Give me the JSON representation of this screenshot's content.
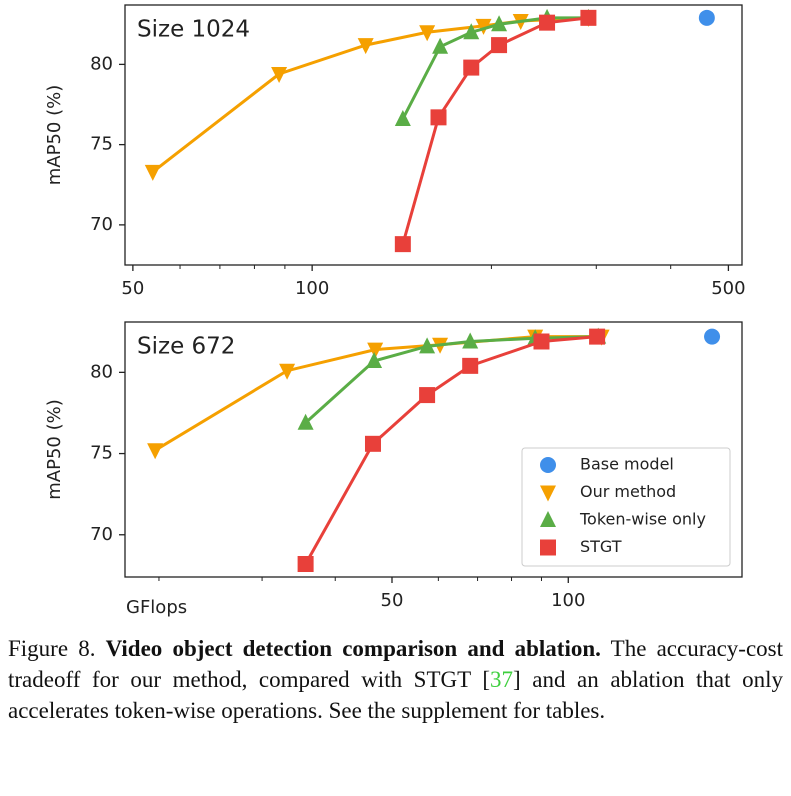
{
  "chart_data": [
    {
      "type": "line",
      "annotation": "Size 1024",
      "ylabel": "mAP50 (%)",
      "xscale": "log",
      "xlim": [
        48.5,
        527
      ],
      "xticks": [
        50,
        100,
        500
      ],
      "xminor": [
        60,
        70,
        80,
        90,
        200,
        300,
        400
      ],
      "ylim": [
        67.5,
        83.7
      ],
      "yticks": [
        70,
        75,
        80
      ],
      "series": [
        {
          "name": "Base model",
          "color": "#3f8fea",
          "marker": "circle",
          "x": [
            460
          ],
          "values": [
            82.9
          ]
        },
        {
          "name": "Our method",
          "color": "#f5a000",
          "marker": "triangle-down",
          "x": [
            54,
            88,
            123,
            156,
            194,
            224,
            291
          ],
          "values": [
            73.3,
            79.4,
            81.2,
            82.0,
            82.4,
            82.7,
            82.9
          ]
        },
        {
          "name": "Token-wise only",
          "color": "#5aad46",
          "marker": "triangle-up",
          "x": [
            142,
            164,
            185,
            206,
            248,
            291
          ],
          "values": [
            76.6,
            81.1,
            82.0,
            82.5,
            82.9,
            82.9
          ]
        },
        {
          "name": "STGT",
          "color": "#e8403a",
          "marker": "square",
          "x": [
            142,
            163,
            185,
            206,
            248,
            291
          ],
          "values": [
            68.8,
            76.7,
            79.8,
            81.2,
            82.6,
            82.9
          ]
        }
      ]
    },
    {
      "type": "line",
      "annotation": "Size 672",
      "ylabel": "mAP50 (%)",
      "xlabel": "GFlops",
      "xscale": "log",
      "xlim": [
        17.5,
        198
      ],
      "xticks": [
        50,
        100
      ],
      "xminor": [
        20,
        30,
        40,
        60,
        70,
        80,
        90
      ],
      "ylim": [
        67.4,
        83.1
      ],
      "yticks": [
        70,
        75,
        80
      ],
      "legend": "lower right",
      "series": [
        {
          "name": "Base model",
          "color": "#3f8fea",
          "marker": "circle",
          "x": [
            176
          ],
          "values": [
            82.2
          ]
        },
        {
          "name": "Our method",
          "color": "#f5a000",
          "marker": "triangle-down",
          "x": [
            19.7,
            33.1,
            46.8,
            60.4,
            87.8,
            114
          ],
          "values": [
            75.2,
            80.1,
            81.4,
            81.7,
            82.2,
            82.2
          ]
        },
        {
          "name": "Token-wise only",
          "color": "#5aad46",
          "marker": "triangle-up",
          "x": [
            35.6,
            46.6,
            57.4,
            68,
            87.8,
            112.5
          ],
          "values": [
            76.9,
            80.7,
            81.6,
            81.9,
            82.1,
            82.2
          ]
        },
        {
          "name": "STGT",
          "color": "#e8403a",
          "marker": "square",
          "x": [
            35.6,
            46.4,
            57.4,
            68,
            90,
            112
          ],
          "values": [
            68.2,
            75.6,
            78.6,
            80.4,
            81.9,
            82.2
          ]
        }
      ]
    }
  ],
  "caption": {
    "label": "Figure 8.",
    "title": "Video object detection comparison and ablation.",
    "text1": "The accuracy-cost tradeoff for our method, compared with STGT [",
    "ref": "37",
    "text2": "] and an ablation that only accelerates token-wise operations.  See the supplement for tables."
  }
}
